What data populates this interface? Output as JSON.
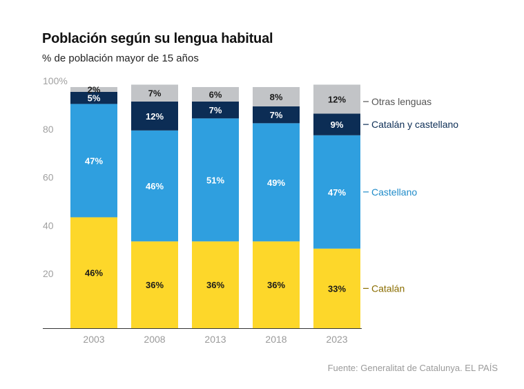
{
  "title": "Población según su lengua habitual",
  "subtitle": "% de población mayor de 15 años",
  "source": "Fuente: Generalitat de Catalunya. EL PAÍS",
  "chart_data": {
    "type": "bar",
    "stacked": true,
    "categories": [
      "2003",
      "2008",
      "2013",
      "2018",
      "2023"
    ],
    "series": [
      {
        "name": "Catalán",
        "values": [
          46,
          36,
          36,
          36,
          33
        ],
        "color": "#fdd72a",
        "legend_color": "#8a6d00",
        "label_color": "#1a1a1a"
      },
      {
        "name": "Castellano",
        "values": [
          47,
          46,
          51,
          49,
          47
        ],
        "color": "#2f9fdf",
        "legend_color": "#1f8bc9",
        "label_color": "#ffffff"
      },
      {
        "name": "Catalán y castellano",
        "values": [
          5,
          12,
          7,
          7,
          9
        ],
        "color": "#0c2d55",
        "legend_color": "#0c2d55",
        "label_color": "#ffffff"
      },
      {
        "name": "Otras lenguas",
        "values": [
          2,
          7,
          6,
          8,
          12
        ],
        "color": "#c2c4c7",
        "legend_color": "#555555",
        "label_color": "#1a1a1a"
      }
    ],
    "data_labels": [
      [
        "46%",
        "36%",
        "36%",
        "36%",
        "33%"
      ],
      [
        "47%",
        "46%",
        "51%",
        "49%",
        "47%"
      ],
      [
        "5%",
        "12%",
        "7%",
        "7%",
        "9%"
      ],
      [
        "2%",
        "7%",
        "6%",
        "8%",
        "12%"
      ]
    ],
    "ylim": [
      0,
      100
    ],
    "yticks": [
      20,
      40,
      60,
      80,
      100
    ],
    "ytick_labels": [
      "20",
      "40",
      "60",
      "80",
      "100%"
    ],
    "xlabel": "",
    "ylabel": "",
    "grid": false,
    "legend": "right, inline labels"
  }
}
